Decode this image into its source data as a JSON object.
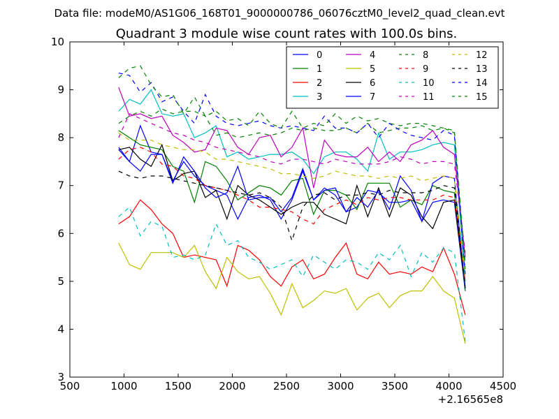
{
  "figure": {
    "suptitle": "Data file: modeM0/AS1G06_168T01_9000000786_06076cztM0_level2_quad_clean.evt"
  },
  "chart_data": {
    "type": "line",
    "title": "Quadrant 3 module wise count rates with 100.0s bins.",
    "xlabel": "",
    "ylabel": "",
    "x_offset_label": "+2.16565e8",
    "xlim": [
      500,
      4500
    ],
    "ylim": [
      3,
      10
    ],
    "xticks": [
      500,
      1000,
      1500,
      2000,
      2500,
      3000,
      3500,
      4000,
      4500
    ],
    "yticks": [
      3,
      4,
      5,
      6,
      7,
      8,
      9,
      10
    ],
    "grid": false,
    "legend_position": "top-right",
    "legend_columns": 4,
    "x": [
      950,
      1050,
      1150,
      1250,
      1350,
      1450,
      1550,
      1650,
      1750,
      1850,
      1950,
      2050,
      2150,
      2250,
      2350,
      2450,
      2550,
      2650,
      2750,
      2850,
      2950,
      3050,
      3150,
      3250,
      3350,
      3450,
      3550,
      3650,
      3750,
      3850,
      3950,
      4050,
      4150
    ],
    "series": [
      {
        "name": "0",
        "color": "#0000ff",
        "dash": "solid",
        "values": [
          7.8,
          7.5,
          8.25,
          7.7,
          7.65,
          7.1,
          7.5,
          7.2,
          7.0,
          6.9,
          6.8,
          6.3,
          6.75,
          6.8,
          6.7,
          6.3,
          6.7,
          7.3,
          6.7,
          6.95,
          6.8,
          6.45,
          6.55,
          6.9,
          6.85,
          6.65,
          6.65,
          6.7,
          6.25,
          6.65,
          6.7,
          6.65,
          4.8
        ]
      },
      {
        "name": "1",
        "color": "#008000",
        "dash": "solid",
        "values": [
          8.15,
          8.0,
          7.85,
          7.8,
          7.75,
          7.4,
          7.3,
          6.65,
          7.5,
          7.4,
          7.1,
          6.7,
          6.85,
          7.0,
          6.95,
          6.8,
          7.1,
          7.15,
          6.4,
          6.9,
          6.9,
          6.8,
          6.5,
          7.05,
          7.05,
          7.05,
          6.55,
          6.7,
          6.6,
          7.0,
          6.9,
          6.85,
          4.8
        ]
      },
      {
        "name": "2",
        "color": "#ff0000",
        "dash": "solid",
        "values": [
          6.2,
          6.35,
          6.7,
          6.5,
          6.2,
          6.0,
          5.5,
          5.55,
          5.5,
          5.45,
          4.9,
          5.75,
          5.65,
          5.45,
          5.1,
          4.9,
          5.3,
          5.45,
          5.05,
          5.15,
          5.5,
          5.8,
          5.15,
          5.05,
          5.4,
          5.15,
          5.2,
          5.15,
          5.3,
          5.2,
          5.7,
          5.15,
          4.3
        ]
      },
      {
        "name": "3",
        "color": "#00bfbf",
        "dash": "solid",
        "values": [
          8.55,
          8.8,
          8.7,
          9.0,
          8.5,
          8.45,
          8.5,
          8.0,
          8.1,
          8.25,
          7.6,
          7.7,
          7.55,
          7.6,
          7.65,
          7.65,
          7.7,
          7.55,
          7.25,
          7.6,
          7.7,
          7.7,
          7.55,
          7.3,
          8.1,
          7.55,
          7.7,
          7.7,
          7.75,
          7.85,
          7.9,
          7.85,
          5.0
        ]
      },
      {
        "name": "4",
        "color": "#bf00bf",
        "dash": "solid",
        "values": [
          9.05,
          8.45,
          8.5,
          8.4,
          8.45,
          8.05,
          7.9,
          7.7,
          7.75,
          8.2,
          8.15,
          7.8,
          7.65,
          8.0,
          8.05,
          7.6,
          7.8,
          8.2,
          6.95,
          7.95,
          7.65,
          7.6,
          7.6,
          7.8,
          7.5,
          7.7,
          7.5,
          7.85,
          7.95,
          8.15,
          7.8,
          7.65,
          5.5
        ]
      },
      {
        "name": "5",
        "color": "#bfbf00",
        "dash": "solid",
        "values": [
          5.8,
          5.35,
          5.25,
          5.6,
          5.6,
          5.6,
          5.5,
          5.75,
          5.2,
          4.85,
          5.5,
          5.2,
          5.05,
          5.1,
          4.75,
          4.3,
          4.95,
          4.45,
          4.6,
          4.8,
          4.75,
          4.85,
          4.4,
          4.65,
          4.75,
          4.45,
          4.7,
          4.8,
          4.8,
          5.1,
          4.8,
          4.65,
          3.7
        ]
      },
      {
        "name": "6",
        "color": "#000000",
        "dash": "solid",
        "values": [
          7.75,
          7.8,
          7.55,
          7.4,
          7.85,
          7.1,
          7.25,
          7.3,
          6.75,
          6.9,
          6.3,
          7.0,
          6.8,
          6.7,
          6.55,
          6.4,
          6.55,
          6.65,
          6.65,
          6.4,
          6.3,
          6.2,
          7.0,
          6.35,
          6.95,
          6.35,
          6.95,
          6.8,
          6.35,
          6.1,
          6.65,
          6.7,
          4.9
        ]
      },
      {
        "name": "7",
        "color": "#0000ff",
        "dash": "solid",
        "values": [
          7.75,
          7.5,
          7.3,
          7.65,
          7.65,
          7.05,
          7.6,
          7.3,
          6.95,
          6.75,
          6.85,
          7.4,
          6.7,
          6.75,
          6.75,
          6.45,
          6.75,
          7.35,
          6.7,
          6.9,
          6.95,
          6.45,
          6.75,
          6.55,
          6.9,
          6.5,
          7.2,
          6.9,
          6.25,
          7.05,
          7.2,
          7.15,
          4.85
        ]
      },
      {
        "name": "8",
        "color": "#008000",
        "dash": "dashed",
        "values": [
          8.3,
          8.45,
          8.55,
          8.45,
          8.6,
          8.5,
          8.55,
          8.55,
          8.45,
          8.05,
          8.1,
          8.0,
          8.05,
          8.1,
          8.05,
          8.1,
          8.2,
          8.15,
          8.2,
          8.15,
          8.15,
          8.2,
          8.1,
          8.3,
          8.1,
          8.15,
          8.2,
          8.2,
          8.25,
          8.15,
          8.2,
          8.1,
          5.35
        ]
      },
      {
        "name": "9",
        "color": "#ff0000",
        "dash": "dashed",
        "values": [
          7.55,
          7.75,
          7.8,
          7.7,
          7.45,
          7.4,
          7.2,
          7.15,
          7.0,
          6.95,
          6.9,
          6.8,
          6.7,
          6.55,
          6.55,
          6.5,
          6.45,
          6.3,
          6.2,
          6.5,
          6.6,
          6.7,
          6.6,
          6.75,
          6.7,
          6.75,
          6.75,
          6.7,
          6.7,
          6.7,
          6.8,
          6.75,
          5.0
        ]
      },
      {
        "name": "10",
        "color": "#00bfbf",
        "dash": "dashed",
        "values": [
          6.35,
          6.55,
          5.95,
          6.25,
          6.15,
          5.5,
          5.55,
          5.45,
          5.55,
          6.2,
          5.75,
          5.85,
          5.5,
          5.4,
          5.25,
          5.35,
          5.45,
          5.1,
          5.55,
          5.4,
          5.25,
          5.45,
          5.4,
          5.25,
          5.6,
          5.45,
          5.75,
          5.1,
          5.6,
          5.4,
          5.7,
          5.6,
          3.75
        ]
      },
      {
        "name": "11",
        "color": "#bf00bf",
        "dash": "dashed",
        "values": [
          8.0,
          8.5,
          8.4,
          8.3,
          8.2,
          8.1,
          8.05,
          7.95,
          7.9,
          7.8,
          7.75,
          7.7,
          7.65,
          7.6,
          7.5,
          7.45,
          7.55,
          7.55,
          7.5,
          7.45,
          7.55,
          7.5,
          7.45,
          7.45,
          7.45,
          7.5,
          7.6,
          7.55,
          7.45,
          7.5,
          7.5,
          7.45,
          5.6
        ]
      },
      {
        "name": "12",
        "color": "#bfbf00",
        "dash": "dashed",
        "values": [
          8.1,
          7.95,
          7.95,
          7.95,
          7.85,
          7.8,
          7.75,
          7.75,
          7.7,
          7.55,
          7.55,
          7.5,
          7.45,
          7.4,
          7.35,
          7.25,
          7.25,
          7.2,
          7.15,
          7.2,
          7.3,
          7.25,
          7.2,
          7.2,
          7.15,
          7.2,
          7.15,
          7.2,
          7.1,
          7.15,
          7.2,
          7.15,
          5.05
        ]
      },
      {
        "name": "13",
        "color": "#000000",
        "dash": "dashed",
        "values": [
          7.3,
          7.2,
          7.15,
          7.2,
          7.2,
          7.15,
          7.1,
          7.05,
          7.0,
          6.95,
          6.9,
          6.85,
          6.8,
          6.85,
          6.75,
          6.55,
          5.85,
          6.55,
          6.8,
          6.85,
          6.7,
          6.8,
          6.8,
          6.85,
          6.8,
          6.9,
          6.85,
          6.85,
          6.85,
          6.9,
          7.0,
          6.95,
          4.85
        ]
      },
      {
        "name": "14",
        "color": "#0000ff",
        "dash": "dashed",
        "values": [
          9.35,
          9.3,
          8.95,
          9.15,
          8.75,
          8.85,
          8.55,
          8.3,
          8.9,
          8.45,
          8.3,
          8.25,
          8.3,
          8.35,
          8.25,
          8.2,
          8.25,
          8.2,
          8.15,
          8.45,
          8.2,
          8.2,
          8.1,
          8.3,
          8.0,
          8.3,
          8.15,
          8.05,
          8.0,
          7.95,
          8.15,
          8.05,
          5.15
        ]
      },
      {
        "name": "15",
        "color": "#008000",
        "dash": "dashed",
        "values": [
          9.25,
          9.45,
          9.5,
          9.1,
          8.85,
          8.9,
          8.5,
          8.85,
          8.45,
          8.55,
          8.35,
          8.4,
          8.25,
          8.55,
          8.3,
          8.2,
          8.55,
          8.2,
          8.3,
          8.25,
          8.5,
          8.3,
          8.45,
          8.35,
          8.4,
          8.3,
          8.25,
          8.3,
          8.3,
          8.25,
          8.2,
          8.15,
          5.25
        ]
      }
    ]
  }
}
